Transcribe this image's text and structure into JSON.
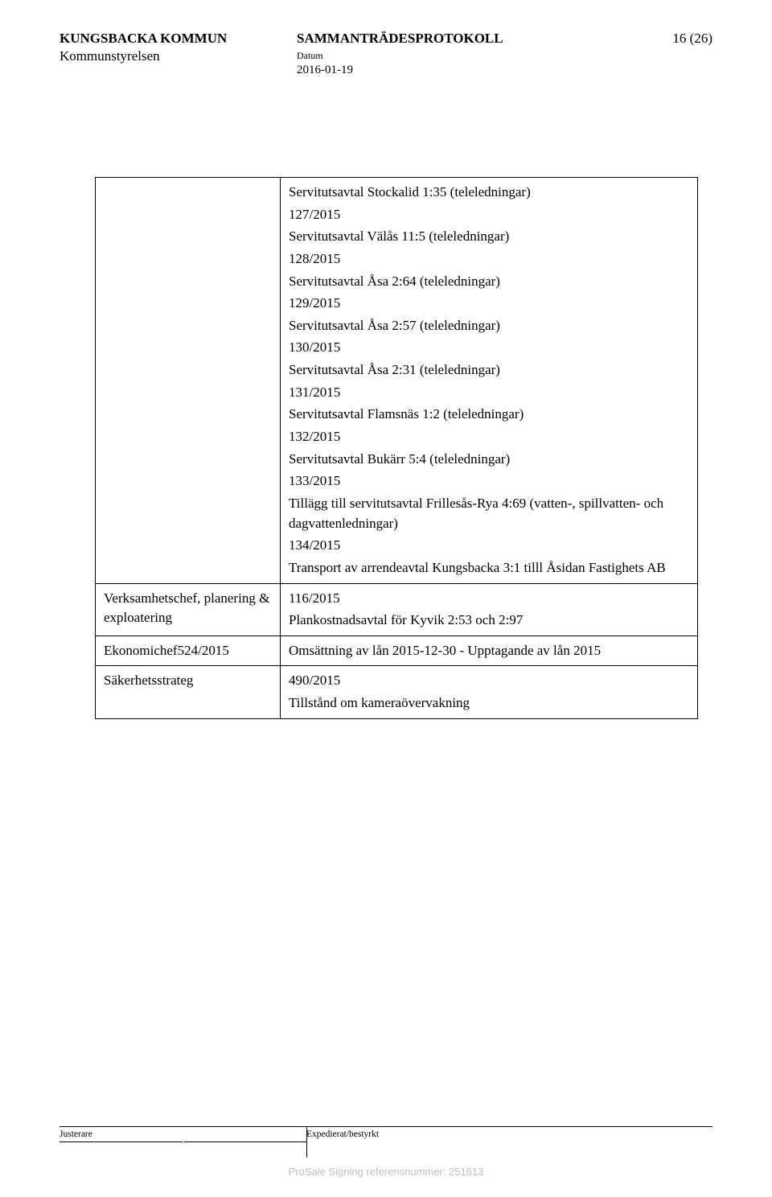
{
  "header": {
    "org_upper": "KUNGSBACKA KOMMUN",
    "org_lower": "Kommunstyrelsen",
    "doc_title": "SAMMANTRÄDESPROTOKOLL",
    "date_label": "Datum",
    "date_value": "2016-01-19",
    "page_num": "16 (26)"
  },
  "table": {
    "row0": {
      "left": "",
      "lines": [
        "Servitutsavtal Stockalid 1:35 (teleledningar)",
        "127/2015",
        "Servitutsavtal Välås 11:5 (teleledningar)",
        "128/2015",
        "Servitutsavtal Åsa 2:64 (teleledningar)",
        "129/2015",
        "Servitutsavtal Åsa 2:57 (teleledningar)",
        "130/2015",
        "Servitutsavtal Åsa 2:31 (teleledningar)",
        "131/2015",
        "Servitutsavtal Flamsnäs 1:2 (teleledningar)",
        "132/2015",
        "Servitutsavtal Bukärr 5:4 (teleledningar)",
        "133/2015",
        "Tillägg till servitutsavtal Frillesås-Rya 4:69 (vatten-, spillvatten- och dagvattenledningar)",
        "134/2015",
        "Transport av arrendeavtal Kungsbacka 3:1 tilll Åsidan Fastighets AB"
      ]
    },
    "row1": {
      "left": "Verksamhetschef, planering & exploatering",
      "lines": [
        "116/2015",
        "Plankostnadsavtal för Kyvik 2:53 och 2:97"
      ]
    },
    "row2": {
      "left": "Ekonomichef",
      "right_inline": "524/2015",
      "lines": [
        "Omsättning av lån 2015-12-30 - Upptagande av lån 2015"
      ]
    },
    "row3": {
      "left": "Säkerhetsstrateg",
      "lines": [
        "490/2015",
        "Tillstånd om kameraövervakning"
      ]
    }
  },
  "footer": {
    "left_label": "Justerare",
    "right_label": "Expedierat/bestyrkt"
  },
  "prosale": "ProSale Signing referensnummer: 251613"
}
